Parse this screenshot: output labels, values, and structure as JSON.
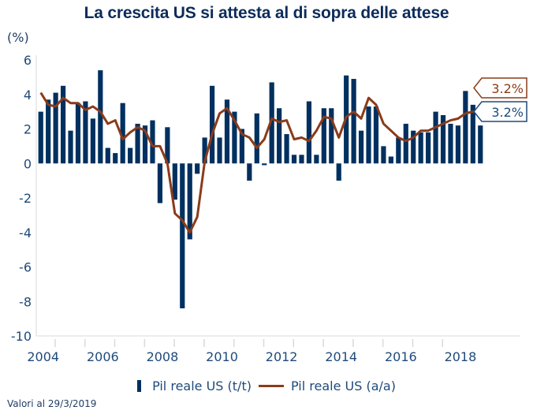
{
  "title": "La crescita US si attesta al di sopra delle attese",
  "unit_label": "(%)",
  "footer": "Valori al 29/3/2019",
  "colors": {
    "bars": "#00305f",
    "line": "#8b3b1a",
    "text": "#1f4a7a",
    "title": "#0d2b5a",
    "axis": "#d9d9d9"
  },
  "chart_data": {
    "type": "bar",
    "title": "La crescita US si attesta al di sopra delle attese",
    "xlabel": "",
    "ylabel": "(%)",
    "ylim": [
      -10,
      6
    ],
    "yticks": [
      6,
      4,
      2,
      0,
      -2,
      -4,
      -6,
      -8,
      -10
    ],
    "xtick_labels": [
      "2004",
      "2006",
      "2008",
      "2010",
      "2012",
      "2014",
      "2016",
      "2018"
    ],
    "x_range": [
      "2004Q1",
      "2018Q4"
    ],
    "grid": false,
    "legend_position": "bottom",
    "categories": [
      "2004Q1",
      "2004Q2",
      "2004Q3",
      "2004Q4",
      "2005Q1",
      "2005Q2",
      "2005Q3",
      "2005Q4",
      "2006Q1",
      "2006Q2",
      "2006Q3",
      "2006Q4",
      "2007Q1",
      "2007Q2",
      "2007Q3",
      "2007Q4",
      "2008Q1",
      "2008Q2",
      "2008Q3",
      "2008Q4",
      "2009Q1",
      "2009Q2",
      "2009Q3",
      "2009Q4",
      "2010Q1",
      "2010Q2",
      "2010Q3",
      "2010Q4",
      "2011Q1",
      "2011Q2",
      "2011Q3",
      "2011Q4",
      "2012Q1",
      "2012Q2",
      "2012Q3",
      "2012Q4",
      "2013Q1",
      "2013Q2",
      "2013Q3",
      "2013Q4",
      "2014Q1",
      "2014Q2",
      "2014Q3",
      "2014Q4",
      "2015Q1",
      "2015Q2",
      "2015Q3",
      "2015Q4",
      "2016Q1",
      "2016Q2",
      "2016Q3",
      "2016Q4",
      "2017Q1",
      "2017Q2",
      "2017Q3",
      "2017Q4",
      "2018Q1",
      "2018Q2",
      "2018Q3",
      "2018Q4"
    ],
    "series": [
      {
        "name": "Pil reale US (t/t)",
        "type": "bar",
        "values": [
          3.0,
          3.7,
          4.1,
          4.5,
          1.9,
          3.5,
          3.6,
          2.6,
          5.4,
          0.9,
          0.6,
          3.5,
          0.9,
          2.3,
          2.2,
          2.5,
          -2.3,
          2.1,
          -2.1,
          -8.4,
          -4.4,
          -0.6,
          1.5,
          4.5,
          1.5,
          3.7,
          3.0,
          2.0,
          -1.0,
          2.9,
          -0.1,
          4.7,
          3.2,
          1.7,
          0.5,
          0.5,
          3.6,
          0.5,
          3.2,
          3.2,
          -1.0,
          5.1,
          4.9,
          1.9,
          3.3,
          3.3,
          1.0,
          0.4,
          1.5,
          2.3,
          1.9,
          1.8,
          1.8,
          3.0,
          2.8,
          2.3,
          2.2,
          4.2,
          3.4,
          2.2
        ]
      },
      {
        "name": "Pil reale US (a/a)",
        "type": "line",
        "values": [
          4.1,
          3.4,
          3.3,
          3.8,
          3.5,
          3.5,
          3.1,
          3.3,
          3.0,
          2.3,
          2.5,
          1.4,
          1.8,
          2.1,
          1.9,
          1.0,
          1.0,
          0.0,
          -2.9,
          -3.3,
          -4.0,
          -3.1,
          0.1,
          1.7,
          2.9,
          3.2,
          2.5,
          1.7,
          1.5,
          0.9,
          1.4,
          2.6,
          2.4,
          2.5,
          1.4,
          1.5,
          1.3,
          1.9,
          2.7,
          2.6,
          1.5,
          2.7,
          3.0,
          2.6,
          3.8,
          3.4,
          2.3,
          1.9,
          1.5,
          1.3,
          1.5,
          1.9,
          1.9,
          2.1,
          2.3,
          2.5,
          2.6,
          2.9,
          3.0,
          3.0
        ]
      }
    ],
    "annotations": [
      {
        "series": "Pil reale US (a/a)",
        "text": "3.2%",
        "color": "#8b3b1a"
      },
      {
        "series": "Pil reale US (t/t)",
        "text": "3.2%",
        "color": "#1f4a7a"
      }
    ]
  },
  "legend": [
    {
      "label": "Pil reale US (t/t)",
      "symbol": "bar"
    },
    {
      "label": "Pil reale US (a/a)",
      "symbol": "line"
    }
  ]
}
